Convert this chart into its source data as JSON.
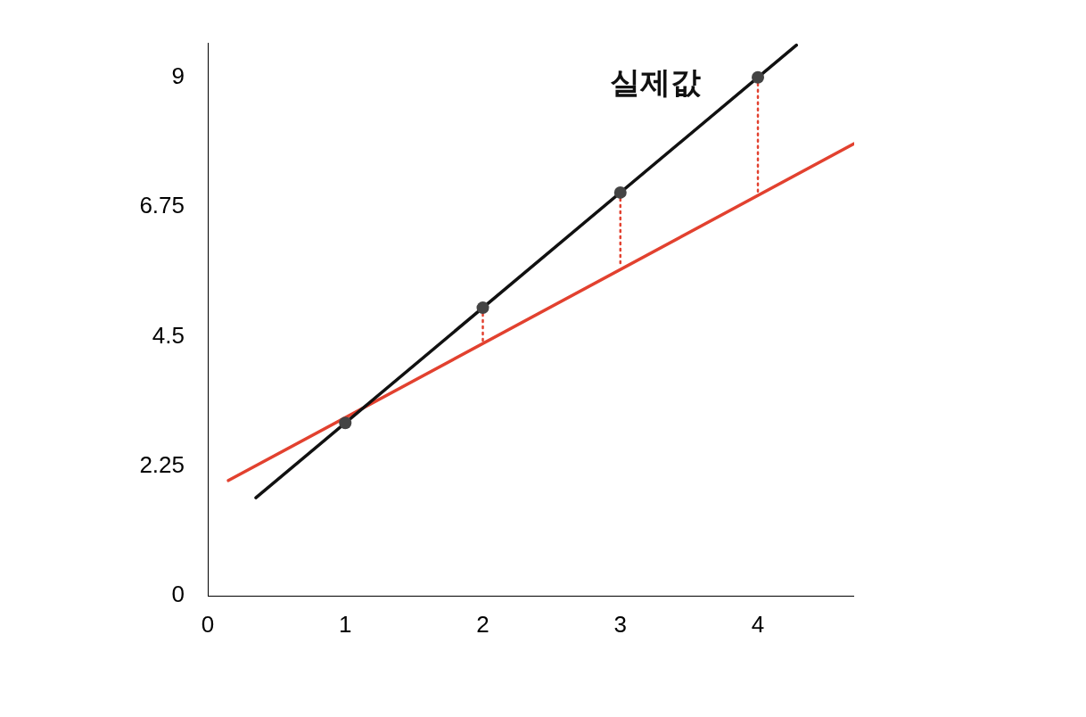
{
  "chart_data": {
    "type": "line",
    "xlim": [
      0,
      4.7
    ],
    "xticks": [
      0,
      1,
      2,
      3,
      4
    ],
    "ylim": [
      0,
      9.6
    ],
    "yticks": [
      0,
      2.25,
      4.5,
      6.75,
      9
    ],
    "grid": false,
    "legend": false,
    "series": [
      {
        "name": "실제값",
        "color": "#111111",
        "x": [
          0.35,
          4.28
        ],
        "values": [
          1.7,
          9.56
        ],
        "marker": "none",
        "line_style": "solid"
      },
      {
        "color": "#e2412f",
        "x": [
          0.15,
          4.7
        ],
        "values": [
          2.0,
          7.85
        ],
        "marker": "none",
        "line_style": "solid"
      },
      {
        "color": "#e2412f",
        "x": [
          2,
          2
        ],
        "values": [
          5,
          4.4
        ],
        "marker": "none",
        "line_style": "dotted"
      },
      {
        "color": "#e2412f",
        "x": [
          3,
          3
        ],
        "values": [
          7,
          5.7
        ],
        "marker": "none",
        "line_style": "dotted"
      },
      {
        "color": "#e2412f",
        "x": [
          4,
          4
        ],
        "values": [
          9,
          7.0
        ],
        "marker": "none",
        "line_style": "dotted"
      },
      {
        "type": "scatter",
        "color": "#444444",
        "x": [
          1,
          2,
          3,
          4
        ],
        "values": [
          3,
          5,
          7,
          9
        ],
        "marker": "circle"
      }
    ]
  }
}
